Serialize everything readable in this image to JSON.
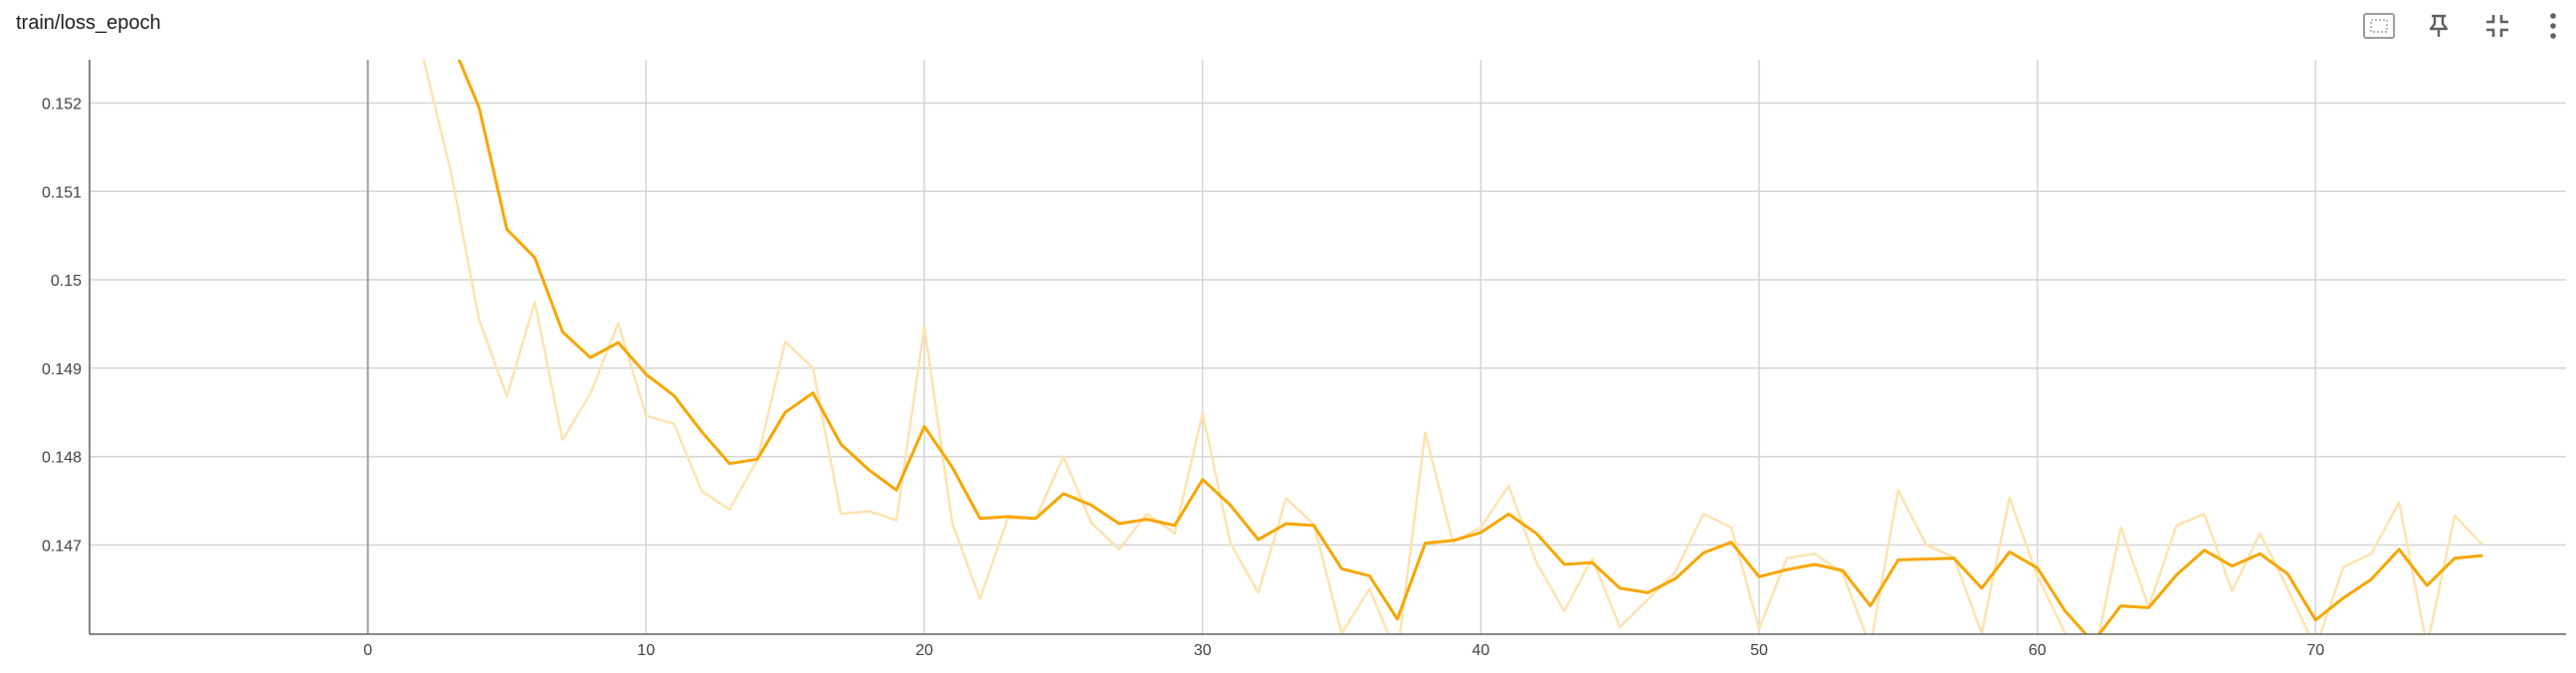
{
  "card": {
    "title": "train/loss_epoch"
  },
  "toolbar": [
    {
      "name": "fit-domain-icon"
    },
    {
      "name": "pin-icon"
    },
    {
      "name": "collapse-icon"
    },
    {
      "name": "more-vert-icon"
    }
  ],
  "colors": {
    "smoothed": "#f7a600",
    "raw": "#fde3b0",
    "grid": "#d4d4d4",
    "zero_line": "#9e9e9e",
    "axis": "#616161"
  },
  "chart_data": {
    "type": "line",
    "title": "",
    "xlabel": "",
    "ylabel": "",
    "xlim": [
      -10,
      79
    ],
    "ylim": [
      0.14599,
      0.15249
    ],
    "x_ticks": [
      0,
      10,
      20,
      30,
      40,
      50,
      60,
      70
    ],
    "x_tick_labels": [
      "0",
      "10",
      "20",
      "30",
      "40",
      "50",
      "60",
      "70"
    ],
    "y_ticks": [
      0.147,
      0.148,
      0.149,
      0.15,
      0.151,
      0.152
    ],
    "y_tick_labels": [
      "0.147",
      "0.148",
      "0.149",
      "0.15",
      "0.151",
      "0.152"
    ],
    "grid": true,
    "series": [
      {
        "style": "raw",
        "x": [
          2,
          3,
          4,
          5,
          6,
          7,
          8,
          9,
          10,
          11,
          12,
          13,
          14,
          15,
          16,
          17,
          18,
          19,
          20,
          21,
          22,
          23,
          24,
          25,
          26,
          27,
          28,
          29,
          30,
          31,
          32,
          33,
          34,
          35,
          36,
          37,
          38,
          39,
          40,
          41,
          42,
          43,
          44,
          45,
          46,
          47,
          48,
          49,
          50,
          51,
          52,
          53,
          54,
          55,
          56,
          57,
          58,
          59,
          60,
          61,
          62,
          63,
          64,
          65,
          66,
          67,
          68,
          69,
          70,
          71,
          72,
          73,
          74,
          75,
          76
        ],
        "y": [
          0.1525,
          0.1512,
          0.14955,
          0.14868,
          0.14975,
          0.14819,
          0.14871,
          0.14951,
          0.14846,
          0.14837,
          0.14761,
          0.1474,
          0.14796,
          0.1493,
          0.149,
          0.14735,
          0.14738,
          0.14728,
          0.14947,
          0.14725,
          0.14639,
          0.1473,
          0.1473,
          0.148,
          0.14725,
          0.14695,
          0.14735,
          0.14713,
          0.14849,
          0.14702,
          0.14646,
          0.14753,
          0.14723,
          0.146,
          0.1465,
          0.14575,
          0.14827,
          0.14703,
          0.1472,
          0.14767,
          0.1468,
          0.14625,
          0.14685,
          0.14607,
          0.14638,
          0.1467,
          0.14735,
          0.1472,
          0.14605,
          0.14685,
          0.1469,
          0.14668,
          0.14585,
          0.14762,
          0.147,
          0.14686,
          0.146,
          0.14753,
          0.14665,
          0.146,
          0.14565,
          0.1472,
          0.1463,
          0.14722,
          0.14735,
          0.14648,
          0.14713,
          0.1465,
          0.14583,
          0.14675,
          0.1469,
          0.14748,
          0.14585,
          0.14733,
          0.147
        ]
      },
      {
        "style": "smoothed",
        "x": [
          3,
          4,
          5,
          6,
          7,
          8,
          9,
          10,
          11,
          12,
          13,
          14,
          15,
          16,
          17,
          18,
          19,
          20,
          21,
          22,
          23,
          24,
          25,
          26,
          27,
          28,
          29,
          30,
          31,
          32,
          33,
          34,
          35,
          36,
          37,
          38,
          39,
          40,
          41,
          42,
          43,
          44,
          45,
          46,
          47,
          48,
          49,
          50,
          51,
          52,
          53,
          54,
          55,
          56,
          57,
          58,
          59,
          60,
          61,
          62,
          63,
          64,
          65,
          66,
          67,
          68,
          69,
          70,
          71,
          72,
          73,
          74,
          75,
          76
        ],
        "y": [
          0.1527,
          0.15195,
          0.15057,
          0.15025,
          0.14941,
          0.14912,
          0.14929,
          0.14893,
          0.14869,
          0.14828,
          0.14792,
          0.14797,
          0.1485,
          0.14872,
          0.14814,
          0.14785,
          0.14762,
          0.14834,
          0.14788,
          0.1473,
          0.14732,
          0.1473,
          0.14758,
          0.14745,
          0.14724,
          0.14729,
          0.14722,
          0.14774,
          0.14745,
          0.14706,
          0.14724,
          0.14722,
          0.14673,
          0.14665,
          0.14616,
          0.14702,
          0.14705,
          0.14714,
          0.14735,
          0.14713,
          0.14678,
          0.1468,
          0.14651,
          0.14646,
          0.14662,
          0.14691,
          0.14703,
          0.14664,
          0.14672,
          0.14678,
          0.14671,
          0.14631,
          0.14683,
          0.14684,
          0.14685,
          0.14651,
          0.14692,
          0.14674,
          0.14625,
          0.1459,
          0.14631,
          0.14629,
          0.14666,
          0.14694,
          0.14676,
          0.1469,
          0.14667,
          0.14615,
          0.1464,
          0.14661,
          0.14695,
          0.14654,
          0.14685,
          0.14688
        ]
      }
    ]
  }
}
